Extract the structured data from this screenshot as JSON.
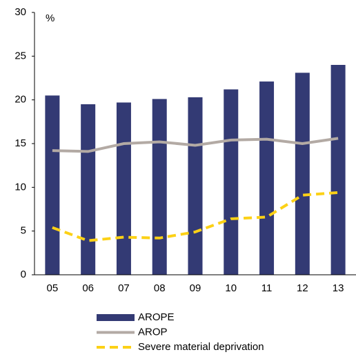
{
  "chart_data": {
    "type": "bar-line",
    "y_label": "%",
    "categories": [
      "05",
      "06",
      "07",
      "08",
      "09",
      "10",
      "11",
      "12",
      "13"
    ],
    "series": [
      {
        "name": "AROPE",
        "type": "bar",
        "color": "#333a74",
        "values": [
          20.5,
          19.5,
          19.7,
          20.1,
          20.3,
          21.2,
          22.1,
          23.1,
          24.0
        ]
      },
      {
        "name": "AROP",
        "type": "line",
        "color": "#b3aaa4",
        "values": [
          14.2,
          14.1,
          15.0,
          15.2,
          14.8,
          15.4,
          15.5,
          15.0,
          15.6
        ]
      },
      {
        "name": "Severe material deprivation",
        "type": "dashed-line",
        "color": "#fcd116",
        "values": [
          5.4,
          3.9,
          4.3,
          4.2,
          4.9,
          6.4,
          6.6,
          9.1,
          9.4
        ]
      }
    ],
    "ylim": [
      0,
      30
    ],
    "yticks": [
      0,
      5,
      10,
      15,
      20,
      25,
      30
    ],
    "grid": false
  }
}
